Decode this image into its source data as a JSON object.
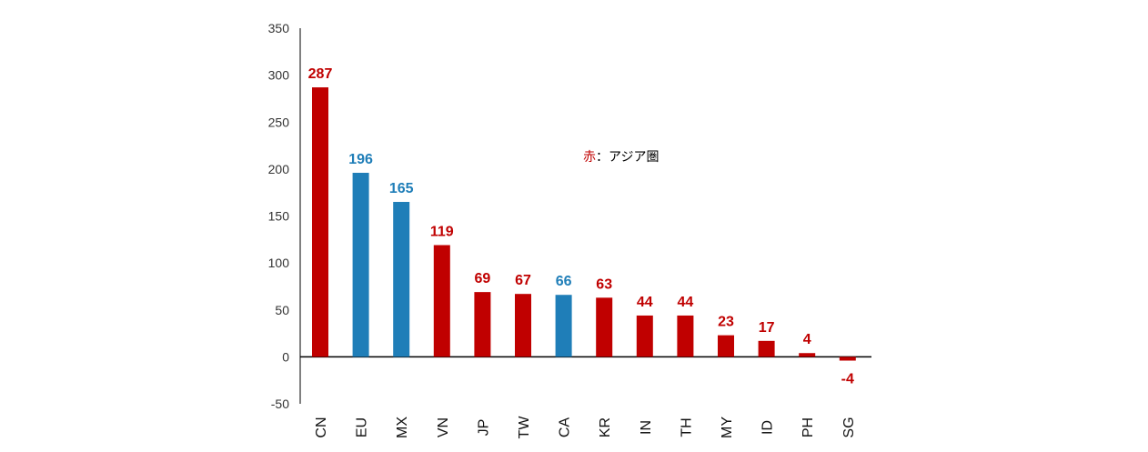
{
  "chart_data": {
    "type": "bar",
    "categories": [
      "CN",
      "EU",
      "MX",
      "VN",
      "JP",
      "TW",
      "CA",
      "KR",
      "IN",
      "TH",
      "MY",
      "ID",
      "PH",
      "SG"
    ],
    "values": [
      287,
      196,
      165,
      119,
      69,
      67,
      66,
      63,
      44,
      44,
      23,
      17,
      4,
      -4
    ],
    "groups": [
      "asia",
      "other",
      "other",
      "asia",
      "asia",
      "asia",
      "other",
      "asia",
      "asia",
      "asia",
      "asia",
      "asia",
      "asia",
      "asia"
    ],
    "colors": {
      "asia": "#c00000",
      "other": "#1f7eb8"
    },
    "yticks": [
      -50,
      0,
      50,
      100,
      150,
      200,
      250,
      300,
      350
    ],
    "ylim": [
      -50,
      350
    ],
    "grid": false,
    "xlabel": "",
    "ylabel": "",
    "annotation": {
      "marker": "赤",
      "text": "：アジア圏"
    }
  }
}
